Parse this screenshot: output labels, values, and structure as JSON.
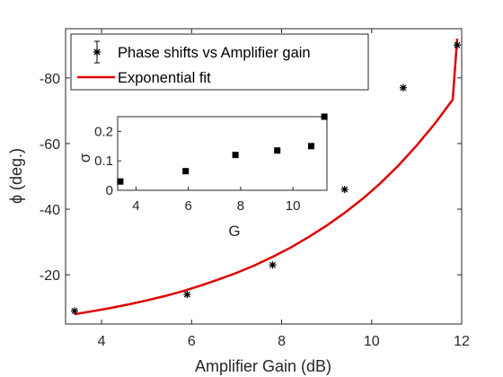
{
  "chart_data": [
    {
      "type": "scatter",
      "xlabel": "Amplifier Gain (dB)",
      "ylabel": "ϕ (deg.)",
      "xlim": [
        3.2,
        12
      ],
      "ylim": [
        -5,
        -95
      ],
      "xticks": [
        4,
        6,
        8,
        10,
        12
      ],
      "yticks": [
        -20,
        -40,
        -60,
        -80
      ],
      "xtick_labels": [
        "4",
        "6",
        "8",
        "10",
        "12"
      ],
      "ytick_labels": [
        "-20",
        "-40",
        "-60",
        "-80"
      ],
      "y_direction": "reversed",
      "grid": false,
      "legend_position": "top-right",
      "series": [
        {
          "name": "Phase shifts vs Amplifier gain",
          "kind": "points-with-errorbars",
          "marker": "asterisk",
          "color": "#000000",
          "x": [
            3.4,
            5.9,
            7.8,
            9.4,
            10.7,
            11.9
          ],
          "y": [
            -9,
            -14,
            -23,
            -46,
            -77,
            -90
          ]
        },
        {
          "name": "Exponential fit",
          "kind": "line",
          "color": "#e00000",
          "x": [
            3.4,
            3.8,
            4.2,
            4.6,
            5.0,
            5.4,
            5.8,
            6.2,
            6.6,
            7.0,
            7.4,
            7.8,
            8.2,
            8.6,
            9.0,
            9.4,
            9.8,
            10.2,
            10.6,
            11.0,
            11.4,
            11.8,
            11.9
          ],
          "y": [
            -8,
            -8.9,
            -9.9,
            -11.0,
            -12.2,
            -13.5,
            -15.0,
            -16.7,
            -18.6,
            -20.6,
            -22.9,
            -25.5,
            -28.3,
            -31.5,
            -35.0,
            -38.9,
            -43.2,
            -48.0,
            -53.4,
            -59.4,
            -66.0,
            -73.4,
            -92
          ]
        }
      ]
    },
    {
      "type": "scatter",
      "xlabel": "G",
      "ylabel": "σ",
      "xlim": [
        3.3,
        11.3
      ],
      "ylim": [
        0,
        0.25
      ],
      "xticks": [
        4,
        6,
        8,
        10
      ],
      "yticks": [
        0,
        0.1,
        0.2
      ],
      "xtick_labels": [
        "4",
        "6",
        "8",
        "10"
      ],
      "ytick_labels": [
        "0",
        "0.1",
        "0.2"
      ],
      "grid": false,
      "series": [
        {
          "kind": "points",
          "marker": "square",
          "color": "#000000",
          "x": [
            3.4,
            5.9,
            7.8,
            9.4,
            10.7,
            11.2
          ],
          "y": [
            0.03,
            0.065,
            0.12,
            0.135,
            0.15,
            0.25
          ]
        }
      ]
    }
  ]
}
